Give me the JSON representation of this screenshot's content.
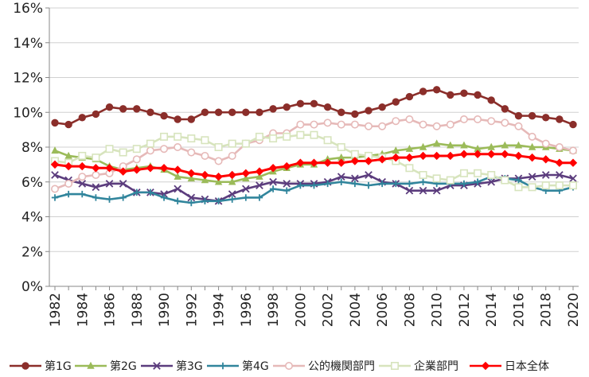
{
  "chart_data": {
    "type": "line",
    "title": "",
    "xlabel": "",
    "ylabel": "",
    "ylim": [
      0,
      16
    ],
    "xlim": [
      1982,
      2020
    ],
    "grid": true,
    "legend_position": "bottom",
    "y_ticks": [
      0,
      2,
      4,
      6,
      8,
      10,
      12,
      14,
      16
    ],
    "y_tick_labels": [
      "0%",
      "2%",
      "4%",
      "6%",
      "8%",
      "10%",
      "12%",
      "14%",
      "16%"
    ],
    "x_ticks": [
      1982,
      1984,
      1986,
      1988,
      1990,
      1992,
      1994,
      1996,
      1998,
      2000,
      2002,
      2004,
      2006,
      2008,
      2010,
      2012,
      2014,
      2016,
      2018,
      2020
    ],
    "x_tick_labels": [
      "1982",
      "1984",
      "1986",
      "1988",
      "1990",
      "1992",
      "1994",
      "1996",
      "1998",
      "2000",
      "2002",
      "2004",
      "2006",
      "2008",
      "2010",
      "2012",
      "2014",
      "2016",
      "2018",
      "2020"
    ],
    "x": [
      1982,
      1983,
      1984,
      1985,
      1986,
      1987,
      1988,
      1989,
      1990,
      1991,
      1992,
      1993,
      1994,
      1995,
      1996,
      1997,
      1998,
      1999,
      2000,
      2001,
      2002,
      2003,
      2004,
      2005,
      2006,
      2007,
      2008,
      2009,
      2010,
      2011,
      2012,
      2013,
      2014,
      2015,
      2016,
      2017,
      2018,
      2019,
      2020
    ],
    "series": [
      {
        "name": "第1G",
        "color": "#8B2E2A",
        "marker": "circle",
        "values": [
          9.4,
          9.3,
          9.7,
          9.9,
          10.3,
          10.2,
          10.2,
          10.0,
          9.8,
          9.6,
          9.6,
          10.0,
          10.0,
          10.0,
          10.0,
          10.0,
          10.2,
          10.3,
          10.5,
          10.5,
          10.3,
          10.0,
          9.9,
          10.1,
          10.3,
          10.6,
          10.9,
          11.2,
          11.3,
          11.0,
          11.1,
          11.0,
          10.7,
          10.2,
          9.8,
          9.8,
          9.7,
          9.6,
          9.3
        ]
      },
      {
        "name": "第2G",
        "color": "#9BBB59",
        "marker": "triangle",
        "values": [
          7.8,
          7.5,
          7.4,
          7.3,
          6.9,
          6.7,
          6.8,
          6.9,
          6.7,
          6.3,
          6.2,
          6.1,
          6.0,
          6.0,
          6.2,
          6.3,
          6.6,
          6.8,
          7.0,
          7.0,
          7.3,
          7.4,
          7.4,
          7.5,
          7.6,
          7.8,
          7.9,
          8.0,
          8.2,
          8.1,
          8.1,
          7.9,
          8.0,
          8.1,
          8.1,
          8.0,
          8.0,
          7.9,
          7.8
        ]
      },
      {
        "name": "第3G",
        "color": "#5B3C7D",
        "marker": "x",
        "values": [
          6.4,
          6.1,
          5.9,
          5.7,
          5.9,
          5.9,
          5.4,
          5.4,
          5.3,
          5.6,
          5.1,
          5.0,
          4.9,
          5.3,
          5.6,
          5.8,
          6.0,
          5.9,
          5.9,
          5.9,
          6.0,
          6.3,
          6.2,
          6.4,
          6.0,
          5.9,
          5.5,
          5.5,
          5.5,
          5.8,
          5.8,
          5.9,
          6.0,
          6.2,
          6.2,
          6.3,
          6.4,
          6.4,
          6.2
        ]
      },
      {
        "name": "第4G",
        "color": "#31859C",
        "marker": "plus",
        "values": [
          5.1,
          5.3,
          5.3,
          5.1,
          5.0,
          5.1,
          5.4,
          5.4,
          5.1,
          4.9,
          4.8,
          4.9,
          4.9,
          5.0,
          5.1,
          5.1,
          5.6,
          5.5,
          5.8,
          5.8,
          5.9,
          6.0,
          5.9,
          5.8,
          5.9,
          5.9,
          5.9,
          6.0,
          5.9,
          5.9,
          5.9,
          6.0,
          6.3,
          6.2,
          6.1,
          5.7,
          5.5,
          5.5,
          5.7
        ]
      },
      {
        "name": "公的機関部門",
        "color": "#E6B9B8",
        "marker": "circle-open",
        "values": [
          5.6,
          5.9,
          6.3,
          6.4,
          6.5,
          6.9,
          7.3,
          7.8,
          7.9,
          8.0,
          7.7,
          7.5,
          7.2,
          7.5,
          8.2,
          8.4,
          8.8,
          8.8,
          9.3,
          9.3,
          9.4,
          9.3,
          9.3,
          9.2,
          9.2,
          9.5,
          9.6,
          9.3,
          9.2,
          9.3,
          9.6,
          9.6,
          9.5,
          9.4,
          9.2,
          8.6,
          8.2,
          8.0,
          7.8
        ]
      },
      {
        "name": "企業部門",
        "color": "#D7E4BD",
        "marker": "square-open",
        "values": [
          7.2,
          7.1,
          7.5,
          7.4,
          7.9,
          7.7,
          7.9,
          8.2,
          8.6,
          8.6,
          8.5,
          8.4,
          8.0,
          8.2,
          8.2,
          8.6,
          8.5,
          8.6,
          8.7,
          8.7,
          8.4,
          8.0,
          7.6,
          7.5,
          7.4,
          7.2,
          6.8,
          6.4,
          6.2,
          6.1,
          6.5,
          6.5,
          6.4,
          6.1,
          5.7,
          5.7,
          5.8,
          5.8,
          5.8
        ]
      },
      {
        "name": "日本全体",
        "color": "#FF0000",
        "marker": "diamond",
        "values": [
          7.0,
          6.9,
          6.9,
          6.8,
          6.8,
          6.6,
          6.7,
          6.8,
          6.8,
          6.7,
          6.5,
          6.4,
          6.3,
          6.4,
          6.5,
          6.6,
          6.8,
          6.9,
          7.1,
          7.1,
          7.1,
          7.1,
          7.2,
          7.2,
          7.3,
          7.4,
          7.4,
          7.5,
          7.5,
          7.5,
          7.6,
          7.6,
          7.6,
          7.6,
          7.5,
          7.4,
          7.3,
          7.1,
          7.1
        ]
      }
    ]
  }
}
